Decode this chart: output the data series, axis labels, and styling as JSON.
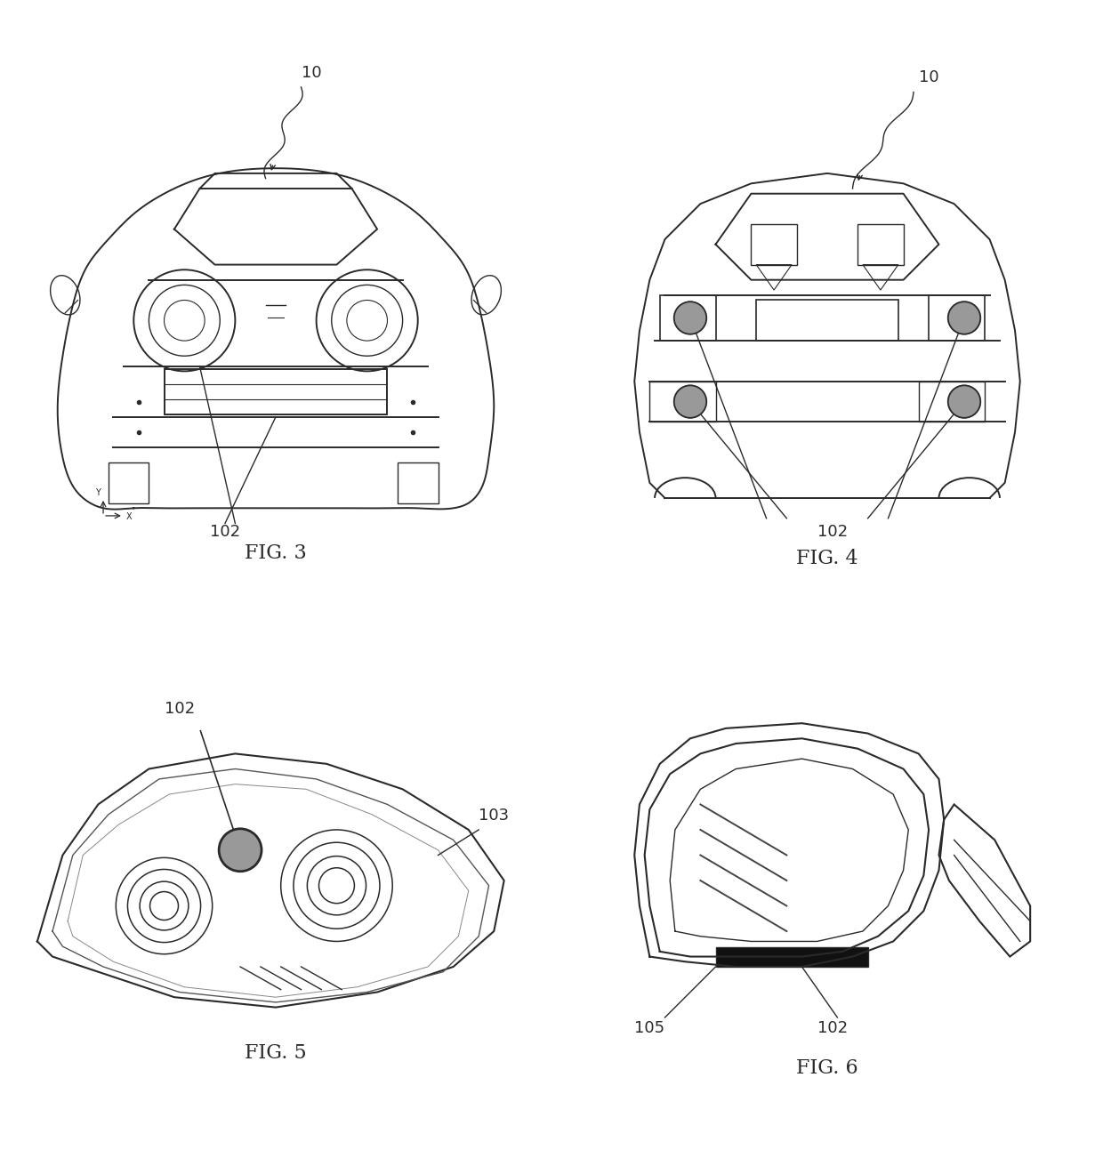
{
  "bg_color": "#ffffff",
  "line_color": "#2a2a2a",
  "line_color2": "#555555",
  "gray_fill": "#999999",
  "dark_fill": "#111111",
  "fig3_label": "FIG. 3",
  "fig4_label": "FIG. 4",
  "fig5_label": "FIG. 5",
  "fig6_label": "FIG. 6",
  "label_10": "10",
  "label_102": "102",
  "label_103": "103",
  "label_105": "105",
  "font_size_fig": 16,
  "font_size_label": 13
}
